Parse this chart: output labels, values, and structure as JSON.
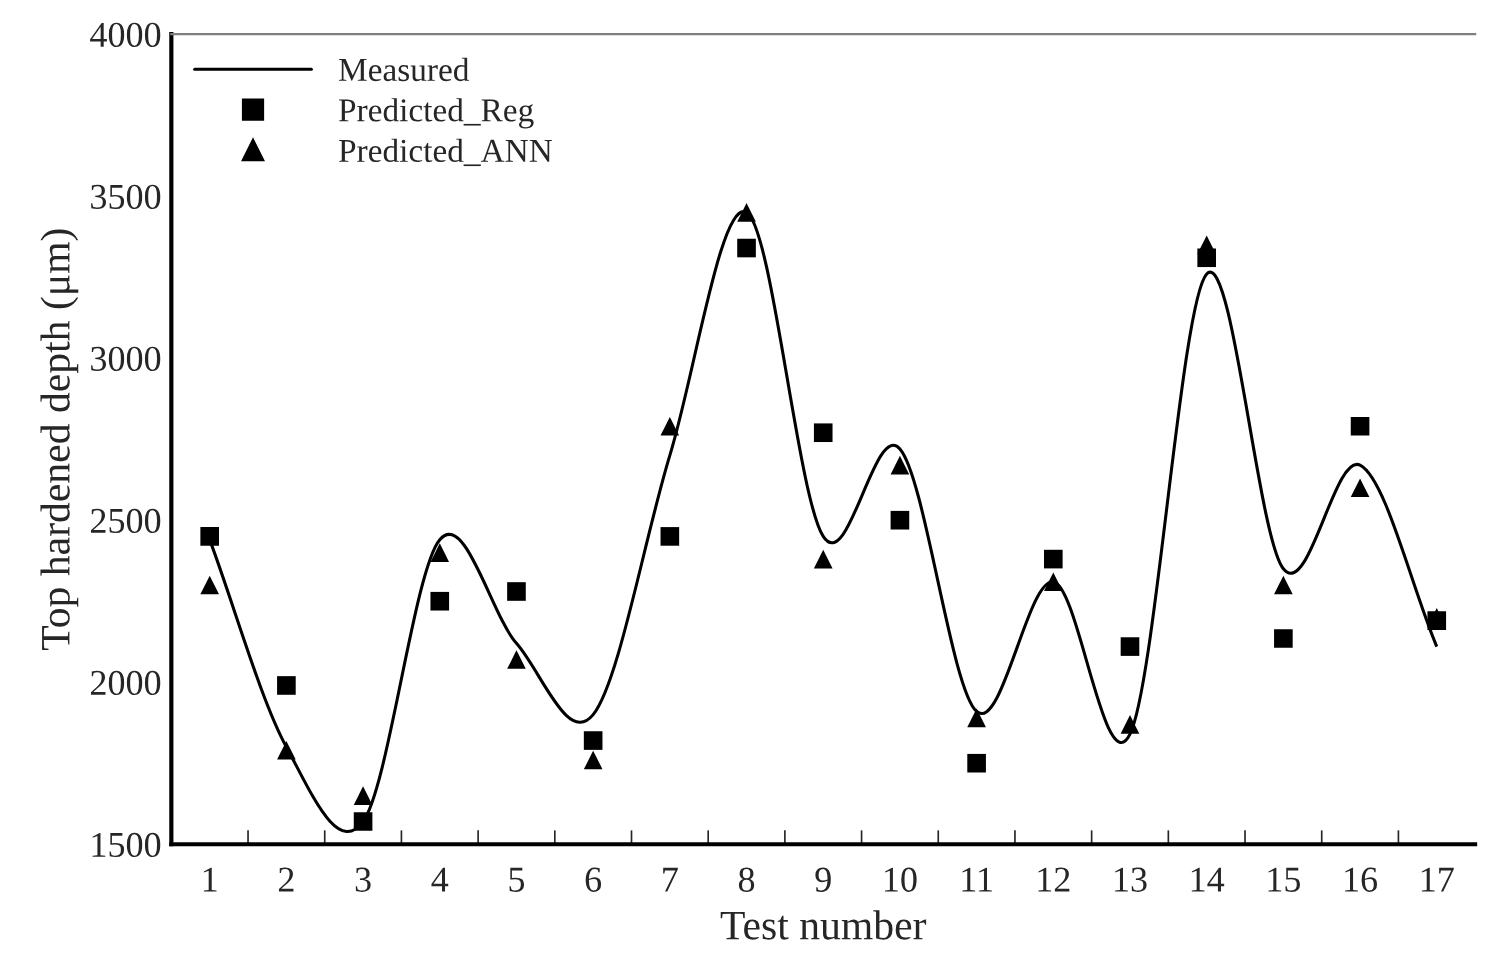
{
  "chart_data": {
    "type": "scatter",
    "xlabel": "Test number",
    "ylabel": "Top hardened depth (μm)",
    "categories": [
      "1",
      "2",
      "3",
      "4",
      "5",
      "6",
      "7",
      "8",
      "9",
      "10",
      "11",
      "12",
      "13",
      "14",
      "15",
      "16",
      "17"
    ],
    "series": [
      {
        "name": "Measured",
        "type": "line",
        "color": "#000000",
        "marker": "none",
        "line_style": "solid",
        "values": [
          2440,
          1800,
          1570,
          2440,
          2120,
          1900,
          2700,
          3450,
          2450,
          2720,
          1910,
          2310,
          1840,
          3260,
          2350,
          2670,
          2110
        ]
      },
      {
        "name": "Predicted_Reg",
        "color": "#000000",
        "marker": "square",
        "values": [
          2450,
          1990,
          1570,
          2250,
          2280,
          1820,
          2450,
          3340,
          2770,
          2500,
          1750,
          2380,
          2110,
          3310,
          2135,
          2790,
          2190
        ]
      },
      {
        "name": "Predicted_ANN",
        "color": "#000000",
        "marker": "triangle",
        "values": [
          2300,
          1790,
          1650,
          2400,
          2070,
          1760,
          2790,
          3450,
          2380,
          2670,
          1890,
          2310,
          1870,
          3350,
          2300,
          2600,
          2200
        ]
      }
    ],
    "ylim": [
      1500,
      4000
    ],
    "yticks": [
      1500,
      2000,
      2500,
      3000,
      3500,
      4000
    ],
    "grid": false,
    "legend": "top left"
  }
}
